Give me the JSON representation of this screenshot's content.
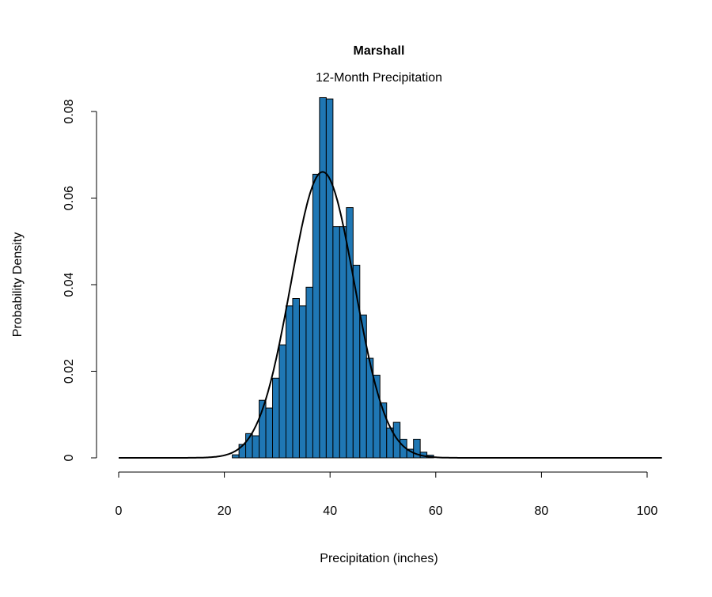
{
  "chart_data": {
    "type": "bar",
    "title": "Marshall",
    "subtitle": "12-Month Precipitation",
    "xlabel": "Precipitation (inches)",
    "ylabel": "Probability Density",
    "xlim": [
      0,
      100
    ],
    "ylim": [
      0,
      0.08
    ],
    "x_ticks": [
      "0",
      "20",
      "40",
      "60",
      "80",
      "100"
    ],
    "y_ticks": [
      "0",
      "0.02",
      "0.04",
      "0.06",
      "0.08"
    ],
    "grid": false,
    "bar_color": "#1f77b4",
    "histogram": {
      "bin_start": 21.5,
      "bin_width": 1.27,
      "densities": [
        0.0007,
        0.0031,
        0.0056,
        0.0051,
        0.0133,
        0.0115,
        0.0184,
        0.0261,
        0.0351,
        0.0368,
        0.0351,
        0.0394,
        0.0655,
        0.0832,
        0.0829,
        0.0534,
        0.0534,
        0.0578,
        0.0445,
        0.033,
        0.023,
        0.0191,
        0.0127,
        0.0069,
        0.0082,
        0.0043,
        0.002,
        0.0043,
        0.0013,
        0.0006
      ]
    },
    "fitted_curve": {
      "type": "normal",
      "mean": 38.6,
      "sd": 6.04,
      "x_range": [
        0,
        103
      ],
      "color": "#000000"
    }
  }
}
